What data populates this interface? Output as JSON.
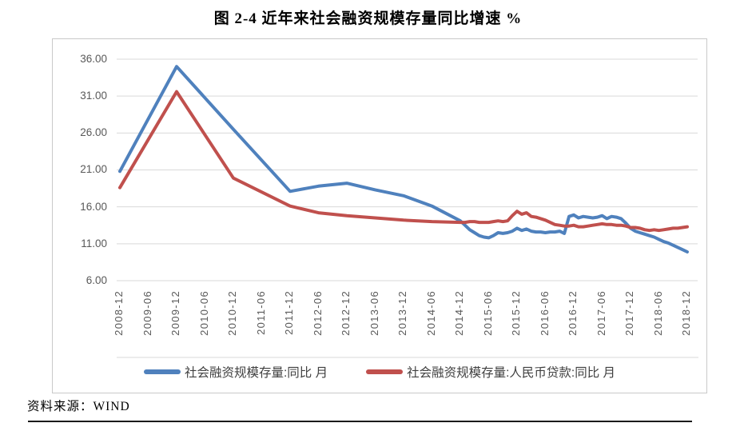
{
  "title": "图 2-4 近年来社会融资规模存量同比增速 %",
  "source": "资料来源：WIND",
  "colors": {
    "series1": "#4F81BD",
    "series2": "#C0504D",
    "gridline": "#D9D9D9",
    "axis_text": "#595959",
    "frame_border": "#C9C9C9"
  },
  "legend": [
    {
      "label": "社会融资规模存量:同比 月",
      "color": "#4F81BD"
    },
    {
      "label": "社会融资规模存量:人民币贷款:同比 月",
      "color": "#C0504D"
    }
  ],
  "chart_data": {
    "type": "line",
    "title": "图 2-4 近年来社会融资规模存量同比增速 %",
    "ylabel": "%",
    "ylim": [
      6,
      36
    ],
    "ytick_step": 5,
    "yticks": [
      "36.00",
      "31.00",
      "26.00",
      "21.00",
      "16.00",
      "11.00",
      "6.00"
    ],
    "xticks": [
      "2008-12",
      "2009-06",
      "2009-12",
      "2010-06",
      "2010-12",
      "2011-06",
      "2011-12",
      "2012-06",
      "2012-12",
      "2013-06",
      "2013-12",
      "2014-06",
      "2014-12",
      "2015-06",
      "2015-12",
      "2016-06",
      "2016-12",
      "2017-06",
      "2017-12",
      "2018-06",
      "2018-12"
    ],
    "grid": "horizontal",
    "legend_position": "bottom",
    "series": [
      {
        "name": "社会融资规模存量:同比 月",
        "color": "#4F81BD",
        "points": [
          [
            "2008-12",
            20.8
          ],
          [
            "2009-12",
            35.0
          ],
          [
            "2010-12",
            26.5
          ],
          [
            "2011-12",
            18.1
          ],
          [
            "2012-06",
            18.8
          ],
          [
            "2012-12",
            19.2
          ],
          [
            "2013-06",
            18.3
          ],
          [
            "2013-12",
            17.5
          ],
          [
            "2014-06",
            16.1
          ],
          [
            "2014-12",
            14.1
          ],
          [
            "2015-01",
            13.5
          ],
          [
            "2015-02",
            12.9
          ],
          [
            "2015-03",
            12.5
          ],
          [
            "2015-04",
            12.1
          ],
          [
            "2015-05",
            11.9
          ],
          [
            "2015-06",
            11.8
          ],
          [
            "2015-07",
            12.1
          ],
          [
            "2015-08",
            12.5
          ],
          [
            "2015-09",
            12.4
          ],
          [
            "2015-10",
            12.5
          ],
          [
            "2015-11",
            12.7
          ],
          [
            "2015-12",
            13.1
          ],
          [
            "2016-01",
            12.8
          ],
          [
            "2016-02",
            13.0
          ],
          [
            "2016-03",
            12.7
          ],
          [
            "2016-04",
            12.6
          ],
          [
            "2016-05",
            12.6
          ],
          [
            "2016-06",
            12.5
          ],
          [
            "2016-07",
            12.6
          ],
          [
            "2016-08",
            12.6
          ],
          [
            "2016-09",
            12.7
          ],
          [
            "2016-10",
            12.4
          ],
          [
            "2016-11",
            14.7
          ],
          [
            "2016-12",
            14.9
          ],
          [
            "2017-01",
            14.5
          ],
          [
            "2017-02",
            14.7
          ],
          [
            "2017-03",
            14.6
          ],
          [
            "2017-04",
            14.5
          ],
          [
            "2017-05",
            14.6
          ],
          [
            "2017-06",
            14.8
          ],
          [
            "2017-07",
            14.4
          ],
          [
            "2017-08",
            14.7
          ],
          [
            "2017-09",
            14.6
          ],
          [
            "2017-10",
            14.4
          ],
          [
            "2017-11",
            13.8
          ],
          [
            "2017-12",
            13.1
          ],
          [
            "2018-01",
            12.7
          ],
          [
            "2018-02",
            12.5
          ],
          [
            "2018-03",
            12.3
          ],
          [
            "2018-04",
            12.1
          ],
          [
            "2018-05",
            11.9
          ],
          [
            "2018-06",
            11.6
          ],
          [
            "2018-07",
            11.3
          ],
          [
            "2018-08",
            11.1
          ],
          [
            "2018-09",
            10.8
          ],
          [
            "2018-10",
            10.5
          ],
          [
            "2018-11",
            10.2
          ],
          [
            "2018-12",
            9.9
          ]
        ]
      },
      {
        "name": "社会融资规模存量:人民币贷款:同比 月",
        "color": "#C0504D",
        "points": [
          [
            "2008-12",
            18.6
          ],
          [
            "2009-12",
            31.6
          ],
          [
            "2010-12",
            19.9
          ],
          [
            "2011-12",
            16.1
          ],
          [
            "2012-06",
            15.2
          ],
          [
            "2012-12",
            14.8
          ],
          [
            "2013-06",
            14.5
          ],
          [
            "2013-12",
            14.2
          ],
          [
            "2014-06",
            14.0
          ],
          [
            "2014-12",
            13.9
          ],
          [
            "2015-01",
            13.9
          ],
          [
            "2015-02",
            14.0
          ],
          [
            "2015-03",
            14.0
          ],
          [
            "2015-04",
            13.9
          ],
          [
            "2015-05",
            13.9
          ],
          [
            "2015-06",
            13.9
          ],
          [
            "2015-07",
            14.0
          ],
          [
            "2015-08",
            14.1
          ],
          [
            "2015-09",
            14.0
          ],
          [
            "2015-10",
            14.1
          ],
          [
            "2015-11",
            14.8
          ],
          [
            "2015-12",
            15.4
          ],
          [
            "2016-01",
            15.0
          ],
          [
            "2016-02",
            15.2
          ],
          [
            "2016-03",
            14.7
          ],
          [
            "2016-04",
            14.6
          ],
          [
            "2016-05",
            14.4
          ],
          [
            "2016-06",
            14.2
          ],
          [
            "2016-07",
            13.9
          ],
          [
            "2016-08",
            13.6
          ],
          [
            "2016-09",
            13.5
          ],
          [
            "2016-10",
            13.4
          ],
          [
            "2016-11",
            13.4
          ],
          [
            "2016-12",
            13.5
          ],
          [
            "2017-01",
            13.3
          ],
          [
            "2017-02",
            13.3
          ],
          [
            "2017-03",
            13.4
          ],
          [
            "2017-04",
            13.5
          ],
          [
            "2017-05",
            13.6
          ],
          [
            "2017-06",
            13.7
          ],
          [
            "2017-07",
            13.6
          ],
          [
            "2017-08",
            13.6
          ],
          [
            "2017-09",
            13.5
          ],
          [
            "2017-10",
            13.5
          ],
          [
            "2017-11",
            13.4
          ],
          [
            "2017-12",
            13.2
          ],
          [
            "2018-01",
            13.2
          ],
          [
            "2018-02",
            13.1
          ],
          [
            "2018-03",
            12.9
          ],
          [
            "2018-04",
            12.8
          ],
          [
            "2018-05",
            12.9
          ],
          [
            "2018-06",
            12.8
          ],
          [
            "2018-07",
            12.9
          ],
          [
            "2018-08",
            13.0
          ],
          [
            "2018-09",
            13.1
          ],
          [
            "2018-10",
            13.1
          ],
          [
            "2018-11",
            13.2
          ],
          [
            "2018-12",
            13.3
          ]
        ]
      }
    ]
  }
}
